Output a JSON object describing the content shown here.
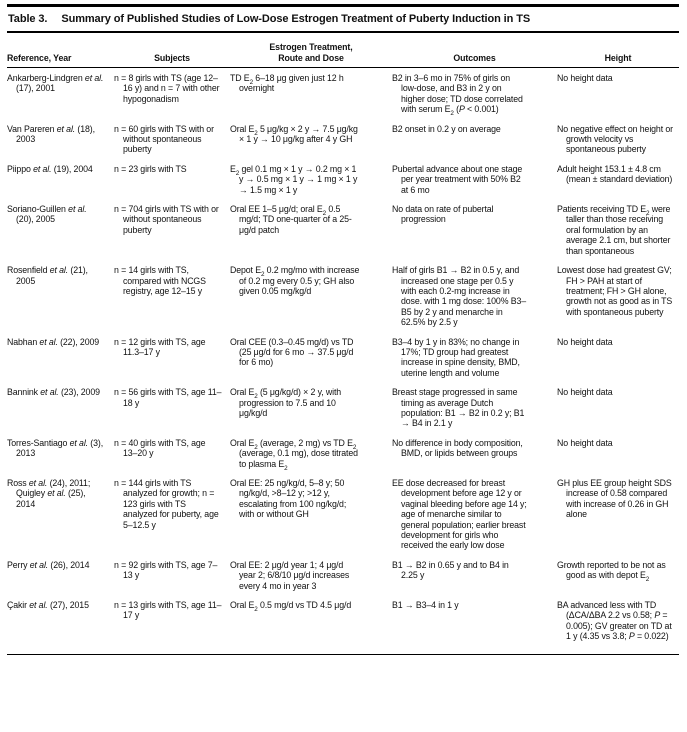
{
  "page": {
    "title_label": "Table 3.",
    "title": "Summary of Published Studies of Low-Dose Estrogen Treatment of Puberty Induction in TS"
  },
  "table": {
    "columns": [
      "Reference, Year",
      "Subjects",
      "Estrogen Treatment, Route and Dose",
      "Outcomes",
      "Height"
    ],
    "rows": [
      {
        "ref": "Ankarberg-Lindgren <i>et al.</i> (17), 2001",
        "subjects": "n = 8 girls with TS (age 12–16 y) and n = 7 with other hypogonadism",
        "treatment": "TD E<sub>2</sub> 6–18 μg given just 12 h overnight",
        "outcomes": "B2 in 3–6 mo in 75% of girls on low-dose, and B3 in 2 y on higher dose; TD dose correlated with serum E<sub>2</sub> (<i>P</i> &lt; 0.001)",
        "height": "No height data"
      },
      {
        "ref": "Van Pareren <i>et al.</i> (18), 2003",
        "subjects": "n = 60 girls with TS with or without spontaneous puberty",
        "treatment": "Oral E<sub>2</sub> 5 μg/kg × 2 y → 7.5 μg/kg × 1 y → 10 μg/kg after 4 y GH",
        "outcomes": "B2 onset in 0.2 y on average",
        "height": "No negative effect on height or growth velocity vs spontaneous puberty"
      },
      {
        "ref": "Piippo <i>et al.</i> (19), 2004",
        "subjects": "n = 23 girls with TS",
        "treatment": "E<sub>2</sub> gel 0.1 mg × 1 y → 0.2 mg × 1 y → 0.5 mg × 1 y → 1 mg × 1 y → 1.5 mg × 1 y",
        "outcomes": "Pubertal advance about one stage per year treatment with 50% B2 at 6 mo",
        "height": "Adult height 153.1 ± 4.8 cm (mean ± standard deviation)"
      },
      {
        "ref": "Soriano-Guillen <i>et al.</i> (20), 2005",
        "subjects": "n = 704 girls with TS with or without spontaneous puberty",
        "treatment": "Oral EE 1–5 μg/d; oral E<sub>2</sub> 0.5 mg/d; TD one-quarter of a 25-μg/d patch",
        "outcomes": "No data on rate of pubertal progression",
        "height": "Patients receiving TD E<sub>2</sub> were taller than those receiving oral formulation by an average 2.1 cm, but shorter than spontaneous"
      },
      {
        "ref": "Rosenfield <i>et al.</i> (21), 2005",
        "subjects": "n = 14 girls with TS, compared with NCGS registry, age 12–15 y",
        "treatment": "Depot E<sub>2</sub> 0.2 mg/mo with increase of 0.2 mg every 0.5 y; GH also given 0.05 mg/kg/d",
        "outcomes": "Half of girls B1 → B2 in 0.5 y, and increased one stage per 0.5 y with each 0.2-mg increase in dose. with 1 mg dose: 100% B3–B5 by 2 y and menarche in 62.5% by 2.5 y",
        "height": "Lowest dose had greatest GV; FH &gt; PAH at start of treatment; FH &gt; GH alone, growth not as good as in TS with spontaneous puberty"
      },
      {
        "ref": "Nabhan <i>et al.</i> (22), 2009",
        "subjects": "n = 12 girls with TS, age 11.3–17 y",
        "treatment": "Oral CEE (0.3–0.45 mg/d) vs TD (25 μg/d for 6 mo → 37.5 μg/d for 6 mo)",
        "outcomes": "B3–4 by 1 y in 83%; no change in 17%; TD group had greatest increase in spine density, BMD, uterine length and volume",
        "height": "No height data"
      },
      {
        "ref": "Bannink <i>et al.</i> (23), 2009",
        "subjects": "n = 56 girls with TS, age 11–18 y",
        "treatment": "Oral E<sub>2</sub> (5 μg/kg/d) × 2 y, with progression to 7.5 and 10 μg/kg/d",
        "outcomes": "Breast stage progressed in same timing as average Dutch population: B1 → B2 in 0.2 y; B1 → B4 in 2.1 y",
        "height": "No height data"
      },
      {
        "ref": "Torres-Santiago <i>et al.</i> (3), 2013",
        "subjects": "n = 40 girls with TS, age 13–20 y",
        "treatment": "Oral E<sub>2</sub> (average, 2 mg) vs TD E<sub>2</sub> (average, 0.1 mg), dose titrated to plasma E<sub>2</sub>",
        "outcomes": "No difference in body composition, BMD, or lipids between groups",
        "height": "No height data"
      },
      {
        "ref": "Ross <i>et al.</i> (24), 2011; Quigley <i>et al.</i> (25), 2014",
        "subjects": "n = 144 girls with TS analyzed for growth; n = 123 girls with TS analyzed for puberty, age 5–12.5 y",
        "treatment": "Oral EE: 25 ng/kg/d, 5–8 y; 50 ng/kg/d, &gt;8–12 y; &gt;12 y, escalating from 100 ng/kg/d; with or without GH",
        "outcomes": "EE dose decreased for breast development before age 12 y or vaginal bleeding before age 14 y; age of menarche similar to general population; earlier breast development for girls who received the early low dose",
        "height": "GH plus EE group height SDS increase of 0.58 compared with increase of 0.26 in GH alone"
      },
      {
        "ref": "Perry <i>et al.</i> (26), 2014",
        "subjects": "n = 92 girls with TS, age 7–13 y",
        "treatment": "Oral EE: 2 μg/d year 1; 4 μg/d year 2; 6/8/10 μg/d increases every 4 mo in year 3",
        "outcomes": "B1 → B2 in 0.65 y and to B4 in 2.25 y",
        "height": "Growth reported to be not as good as with depot E<sub>2</sub>"
      },
      {
        "ref": "Çakir <i>et al.</i> (27), 2015",
        "subjects": "n = 13 girls with TS, age 11–17 y",
        "treatment": "Oral E<sub>2</sub> 0.5 mg/d vs TD 4.5 μg/d",
        "outcomes": "B1 → B3–4 in 1 y",
        "height": "BA advanced less with TD (ΔCA/ΔBA 2.2 vs 0.58; <i>P</i> = 0.005); GV greater on TD at 1 y (4.35 vs 3.8; <i>P</i> = 0.022)"
      }
    ]
  }
}
